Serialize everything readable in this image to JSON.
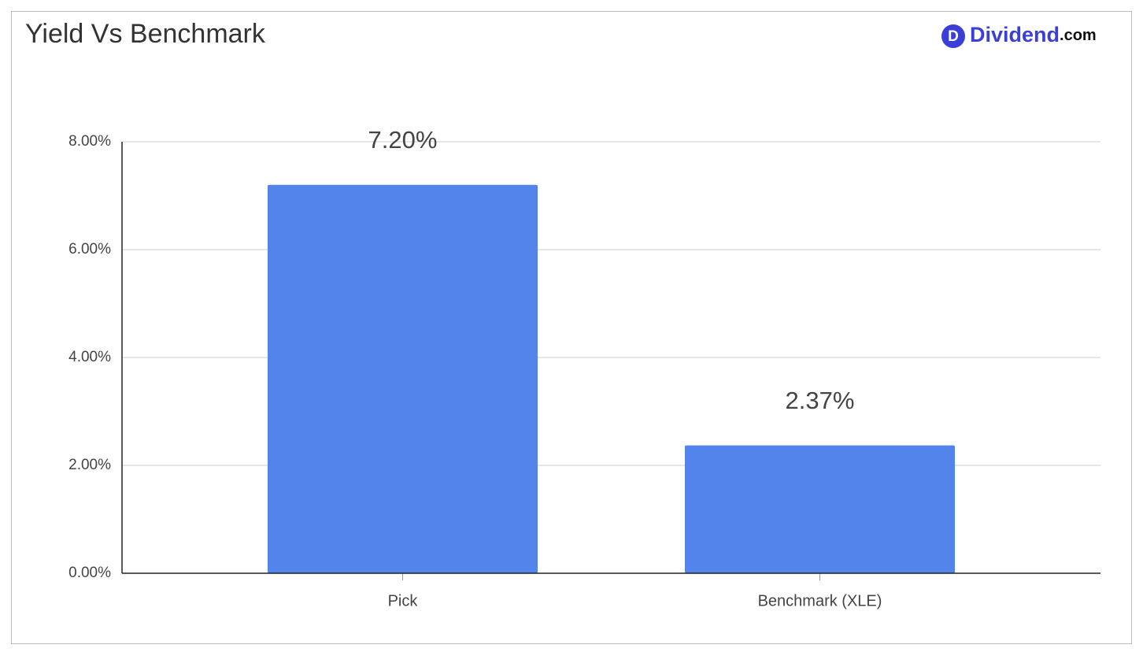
{
  "chart_data": {
    "type": "bar",
    "title": "Yield Vs Benchmark",
    "brand_icon": "D",
    "brand": "Dividend",
    "brand_suffix": ".com",
    "categories": [
      "Pick",
      "Benchmark (XLE)"
    ],
    "values": [
      7.2,
      2.37
    ],
    "value_labels": [
      "7.20%",
      "2.37%"
    ],
    "color": "#5284ec",
    "ylim": [
      0,
      8
    ],
    "yticks": [
      {
        "value": 0,
        "label": "0.00%"
      },
      {
        "value": 2,
        "label": "2.00%"
      },
      {
        "value": 4,
        "label": "4.00%"
      },
      {
        "value": 6,
        "label": "6.00%"
      },
      {
        "value": 8,
        "label": "8.00%"
      }
    ],
    "grid": true
  }
}
